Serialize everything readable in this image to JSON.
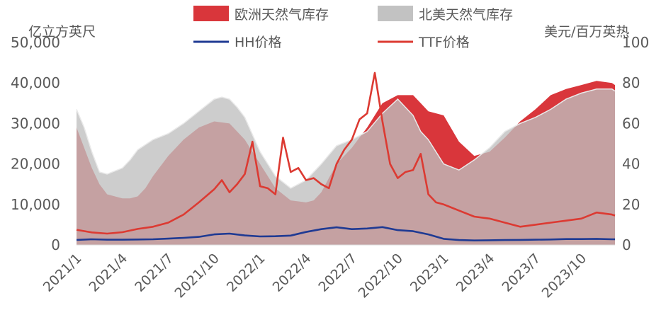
{
  "chart_data": {
    "type": "area",
    "left_unit": "亿立方英尺",
    "right_unit": "美元/百万英热",
    "y_left_ticks": [
      "0",
      "10,000",
      "20,000",
      "30,000",
      "40,000",
      "50,000"
    ],
    "y_right_ticks": [
      "0",
      "20",
      "40",
      "60",
      "80",
      "100"
    ],
    "ylim_left": [
      0,
      50000
    ],
    "ylim_right": [
      0,
      100
    ],
    "x_tick_labels": [
      "2021/1",
      "2021/4",
      "2021/7",
      "2021/10",
      "2022/1",
      "2022/4",
      "2022/7",
      "2022/10",
      "2023/1",
      "2023/4",
      "2023/7",
      "2023/10"
    ],
    "x_month_index_range": [
      0,
      35.2
    ],
    "legend": [
      "欧洲天然气库存",
      "北美天然气库存",
      "HH价格",
      "TTF价格"
    ],
    "colors": {
      "europe_storage": "#d9363b",
      "na_storage": "#bfbfbf",
      "hh": "#1f3a93",
      "ttf": "#dc3a32",
      "axis_text": "#595959"
    },
    "series": [
      {
        "name": "欧洲天然气库存",
        "type": "area",
        "axis": "left",
        "x": [
          0,
          0.5,
          1,
          1.5,
          2,
          3,
          3.5,
          4,
          4.5,
          5,
          6,
          7,
          8,
          9,
          10,
          11,
          12,
          13,
          14,
          15,
          15.5,
          16,
          16.5,
          17,
          18,
          19,
          20,
          21,
          22,
          22.5,
          23,
          23.5,
          24,
          25,
          26,
          27,
          28,
          28.5,
          29,
          30,
          31,
          32,
          33,
          34,
          35,
          35.2
        ],
        "values": [
          29000,
          24000,
          19000,
          15000,
          12500,
          11500,
          11500,
          12000,
          14000,
          17000,
          22000,
          26000,
          29000,
          30500,
          30000,
          26000,
          20000,
          14000,
          11000,
          10500,
          11000,
          13000,
          16500,
          20000,
          24000,
          29000,
          35000,
          37000,
          37000,
          35000,
          33000,
          32500,
          32000,
          25500,
          22000,
          23000,
          26500,
          28500,
          30500,
          33500,
          37000,
          38500,
          39500,
          40500,
          40000,
          39500
        ]
      },
      {
        "name": "北美天然气库存",
        "type": "area",
        "axis": "left",
        "x": [
          0,
          0.5,
          1,
          1.5,
          2,
          3,
          3.5,
          4,
          5,
          6,
          7,
          8,
          9,
          9.5,
          10,
          10.5,
          11,
          12,
          13,
          14,
          15,
          16,
          17,
          18,
          19,
          20,
          21,
          22,
          22.5,
          23,
          24,
          25,
          26,
          27,
          28,
          29,
          30,
          31,
          32,
          33,
          34,
          35,
          35.2
        ],
        "values": [
          33500,
          29000,
          23000,
          18000,
          17500,
          19000,
          21000,
          23500,
          26000,
          27500,
          30000,
          33000,
          36000,
          36500,
          36000,
          34000,
          31500,
          23000,
          17000,
          14000,
          16000,
          20000,
          24500,
          26000,
          28000,
          32500,
          36000,
          32000,
          28000,
          26000,
          20000,
          18500,
          21000,
          24000,
          28000,
          30000,
          31500,
          33500,
          36000,
          37500,
          38500,
          38500,
          38000
        ]
      },
      {
        "name": "HH价格",
        "type": "line",
        "axis": "right",
        "x": [
          0,
          1,
          2,
          3,
          4,
          5,
          6,
          7,
          8,
          9,
          10,
          11,
          12,
          13,
          14,
          15,
          16,
          17,
          18,
          19,
          20,
          21,
          22,
          23,
          24,
          25,
          26,
          27,
          28,
          29,
          30,
          31,
          32,
          33,
          34,
          35,
          35.2
        ],
        "values": [
          2.5,
          2.8,
          2.6,
          2.6,
          2.7,
          2.8,
          3.1,
          3.5,
          4.0,
          5.2,
          5.6,
          4.7,
          4.2,
          4.3,
          4.6,
          6.4,
          7.8,
          8.7,
          7.8,
          8.1,
          8.8,
          7.3,
          6.8,
          5.2,
          3.0,
          2.4,
          2.2,
          2.3,
          2.4,
          2.5,
          2.6,
          2.7,
          2.9,
          2.9,
          3.0,
          2.8,
          2.8
        ]
      },
      {
        "name": "TTF价格",
        "type": "line",
        "axis": "right",
        "x": [
          0,
          1,
          2,
          3,
          4,
          5,
          6,
          7,
          8,
          9,
          9.5,
          10,
          10.5,
          11,
          11.5,
          12,
          12.5,
          13,
          13.5,
          14,
          14.5,
          15,
          15.5,
          16,
          16.5,
          17,
          17.5,
          18,
          18.5,
          19,
          19.5,
          20,
          20.5,
          21,
          21.5,
          22,
          22.5,
          23,
          23.5,
          24,
          25,
          26,
          27,
          28,
          29,
          30,
          31,
          32,
          33,
          34,
          35,
          35.2
        ],
        "values": [
          7.5,
          6.2,
          5.6,
          6.3,
          7.9,
          9.0,
          11.0,
          15.0,
          21.0,
          27.5,
          32.0,
          26.0,
          30.0,
          35.0,
          51.0,
          29.0,
          28.0,
          25.0,
          53.0,
          36.0,
          38.0,
          32.0,
          33.0,
          30.0,
          28.0,
          40.0,
          47.0,
          52.0,
          62.0,
          65.0,
          85.0,
          61.0,
          40.0,
          33.0,
          36.0,
          37.0,
          45.0,
          25.0,
          21.0,
          20.0,
          17.0,
          14.0,
          13.0,
          11.0,
          9.0,
          10.0,
          11.0,
          12.0,
          13.0,
          16.0,
          15.0,
          14.5
        ]
      }
    ]
  }
}
